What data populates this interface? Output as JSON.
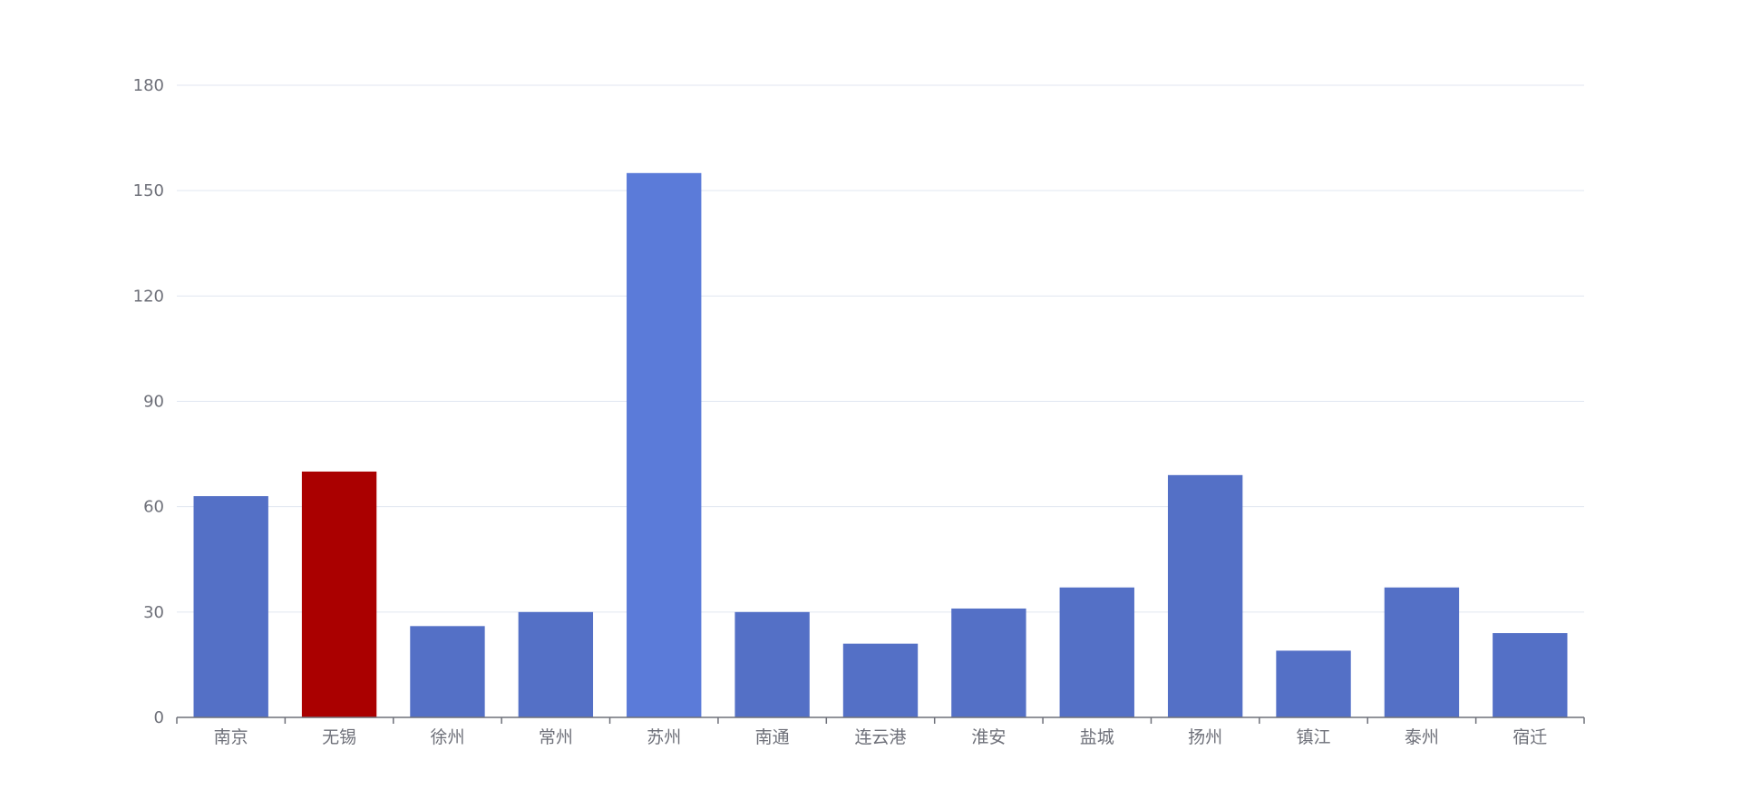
{
  "colors": {
    "bar_default": "#5470c6",
    "bar_emphasis": "#5b7bd9",
    "bar_highlight": "#aa0000",
    "grid": "#e0e6f1",
    "axis": "#6e7079",
    "text": "#6e7079"
  },
  "chart_data": {
    "type": "bar",
    "title": "",
    "xlabel": "",
    "ylabel": "",
    "categories": [
      "南京",
      "无锡",
      "徐州",
      "常州",
      "苏州",
      "南通",
      "连云港",
      "淮安",
      "盐城",
      "扬州",
      "镇江",
      "泰州",
      "宿迁"
    ],
    "values": [
      63,
      70,
      26,
      30,
      155,
      30,
      21,
      31,
      37,
      69,
      19,
      37,
      24
    ],
    "highlighted_category": "无锡",
    "emphasized_category": "苏州",
    "ylim": [
      0,
      180
    ],
    "yticks": [
      0,
      30,
      60,
      90,
      120,
      150,
      180
    ],
    "grid": true,
    "legend": "none"
  }
}
